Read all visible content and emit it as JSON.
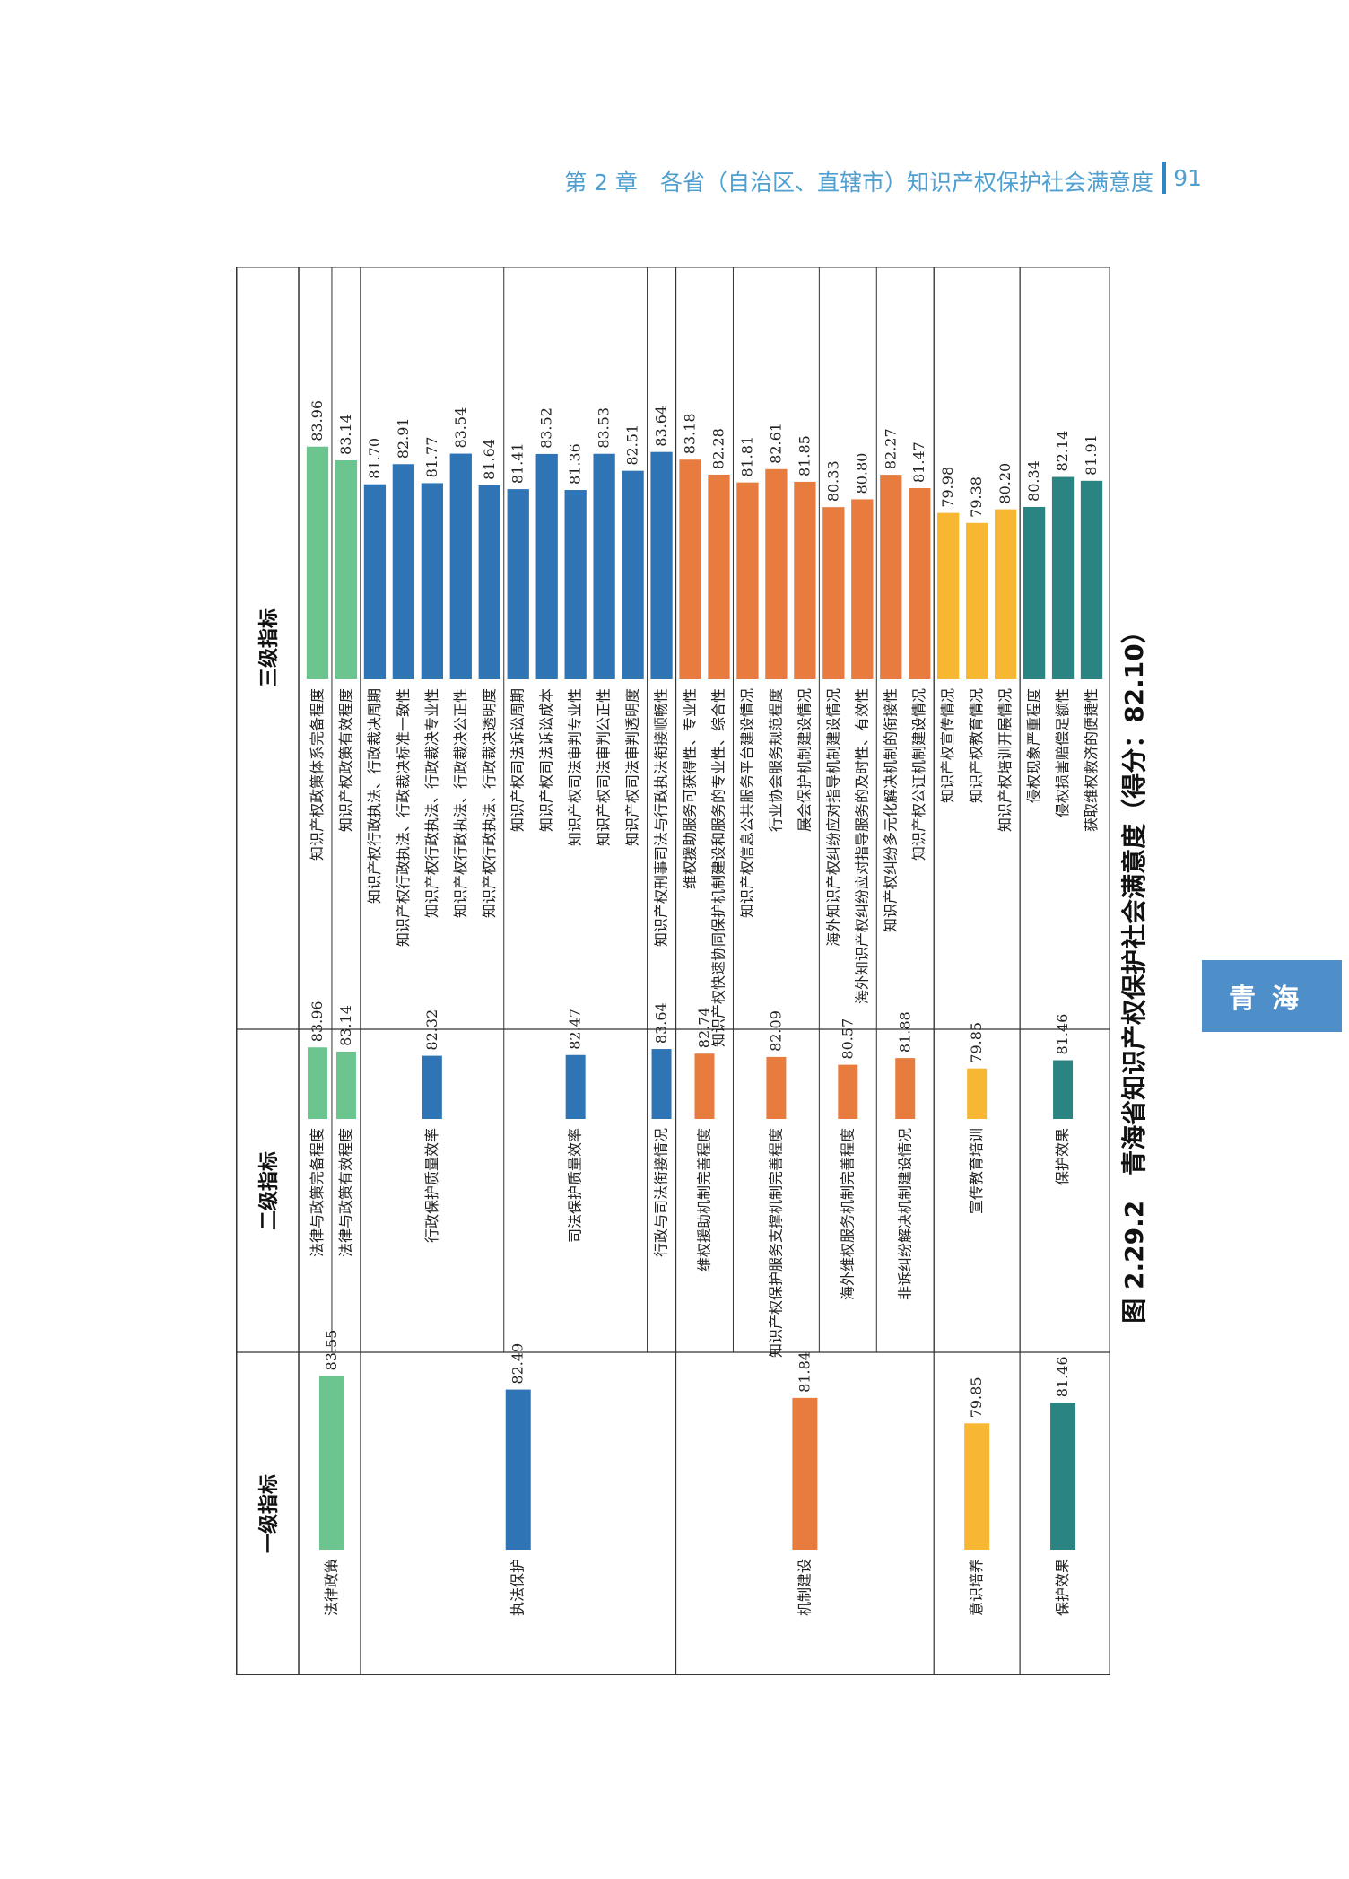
{
  "header": {
    "chapter": "第 2 章　各省（自治区、直辖市）知识产权保护社会满意度",
    "page_number": "91"
  },
  "side_tab": {
    "label": "青海"
  },
  "caption": "图 2.29.2　青海省知识产权保护社会满意度（得分：82.10）",
  "colors": {
    "green": "#6cc58e",
    "blue": "#2f75b5",
    "orange": "#e77c3e",
    "yellow": "#f7b733",
    "teal": "#2a8582"
  },
  "chart_data": {
    "type": "bar",
    "title": "青海省知识产权保护社会满意度",
    "overall_score": 82.1,
    "headers": [
      "一级指标",
      "二级指标",
      "三级指标"
    ],
    "level1": [
      {
        "name": "法律政策",
        "value": 83.55,
        "color": "green"
      },
      {
        "name": "执法保护",
        "value": 82.49,
        "color": "blue"
      },
      {
        "name": "机制建设",
        "value": 81.84,
        "color": "orange"
      },
      {
        "name": "意识培养",
        "value": 79.85,
        "color": "yellow"
      },
      {
        "name": "保护效果",
        "value": 81.46,
        "color": "teal"
      }
    ],
    "level2": [
      {
        "name": "法律与政策完备程度",
        "value": 83.96,
        "parent": 0
      },
      {
        "name": "法律与政策有效程度",
        "value": 83.14,
        "parent": 0
      },
      {
        "name": "行政保护质量效率",
        "value": 82.32,
        "parent": 1
      },
      {
        "name": "司法保护质量效率",
        "value": 82.47,
        "parent": 1
      },
      {
        "name": "行政与司法衔接情况",
        "value": 83.64,
        "parent": 1
      },
      {
        "name": "维权援助机制完善程度",
        "value": 82.74,
        "parent": 2
      },
      {
        "name": "知识产权保护服务支撑机制完善程度",
        "value": 82.09,
        "parent": 2
      },
      {
        "name": "海外维权服务机制完善程度",
        "value": 80.57,
        "parent": 2
      },
      {
        "name": "非诉纠纷解决机制建设情况",
        "value": 81.88,
        "parent": 2
      },
      {
        "name": "宣传教育培训",
        "value": 79.85,
        "parent": 3
      },
      {
        "name": "保护效果",
        "value": 81.46,
        "parent": 4
      }
    ],
    "level3": [
      {
        "name": "知识产权政策体系完备程度",
        "value": 83.96,
        "parent": 0
      },
      {
        "name": "知识产权政策有效程度",
        "value": 83.14,
        "parent": 1
      },
      {
        "name": "知识产权行政执法、行政裁决周期",
        "value": 81.7,
        "parent": 2
      },
      {
        "name": "知识产权行政执法、行政裁决标准一致性",
        "value": 82.91,
        "parent": 2
      },
      {
        "name": "知识产权行政执法、行政裁决专业性",
        "value": 81.77,
        "parent": 2
      },
      {
        "name": "知识产权行政执法、行政裁决公正性",
        "value": 83.54,
        "parent": 2
      },
      {
        "name": "知识产权行政执法、行政裁决透明度",
        "value": 81.64,
        "parent": 2
      },
      {
        "name": "知识产权司法诉讼周期",
        "value": 81.41,
        "parent": 3
      },
      {
        "name": "知识产权司法诉讼成本",
        "value": 83.52,
        "parent": 3
      },
      {
        "name": "知识产权司法审判专业性",
        "value": 81.36,
        "parent": 3
      },
      {
        "name": "知识产权司法审判公正性",
        "value": 83.53,
        "parent": 3
      },
      {
        "name": "知识产权司法审判透明度",
        "value": 82.51,
        "parent": 3
      },
      {
        "name": "知识产权刑事司法与行政执法衔接顺畅性",
        "value": 83.64,
        "parent": 4
      },
      {
        "name": "维权援助服务可获得性、专业性",
        "value": 83.18,
        "parent": 5
      },
      {
        "name": "知识产权快速协同保护机制建设和服务的专业性、综合性",
        "value": 82.28,
        "parent": 5
      },
      {
        "name": "知识产权信息公共服务平台建设情况",
        "value": 81.81,
        "parent": 6
      },
      {
        "name": "行业协会服务规范程度",
        "value": 82.61,
        "parent": 6
      },
      {
        "name": "展会保护机制建设情况",
        "value": 81.85,
        "parent": 6
      },
      {
        "name": "海外知识产权纠纷应对指导机制建设情况",
        "value": 80.33,
        "parent": 7
      },
      {
        "name": "海外知识产权纠纷应对指导服务的及时性、有效性",
        "value": 80.8,
        "parent": 7
      },
      {
        "name": "知识产权纠纷多元化解决机制的衔接性",
        "value": 82.27,
        "parent": 8
      },
      {
        "name": "知识产权公证机制建设情况",
        "value": 81.47,
        "parent": 8
      },
      {
        "name": "知识产权宣传情况",
        "value": 79.98,
        "parent": 9
      },
      {
        "name": "知识产权教育情况",
        "value": 79.38,
        "parent": 9
      },
      {
        "name": "知识产权培训开展情况",
        "value": 80.2,
        "parent": 9
      },
      {
        "name": "侵权现象严重程度",
        "value": 80.34,
        "parent": 10
      },
      {
        "name": "侵权损害赔偿足额性",
        "value": 82.14,
        "parent": 10
      },
      {
        "name": "获取维权救济的便捷性",
        "value": 81.91,
        "parent": 10
      }
    ]
  }
}
